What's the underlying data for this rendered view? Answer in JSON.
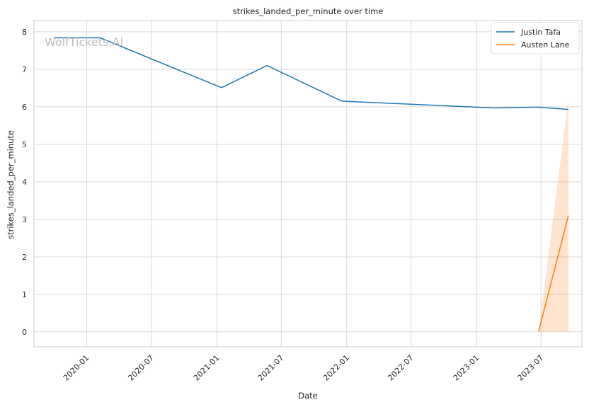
{
  "watermark": "WolfTickets.AI",
  "chart_data": {
    "type": "line",
    "title": "strikes_landed_per_minute over time",
    "xlabel": "Date",
    "ylabel": "strikes_landed_per_minute",
    "x_ticks": [
      "2020-01",
      "2020-07",
      "2021-01",
      "2021-07",
      "2022-01",
      "2022-07",
      "2023-01",
      "2023-07"
    ],
    "y_ticks": [
      "0",
      "1",
      "2",
      "3",
      "4",
      "5",
      "6",
      "7",
      "8"
    ],
    "ylim": [
      -0.4,
      8.3
    ],
    "xlim": [
      "2019-08-06",
      "2023-10-24"
    ],
    "grid": true,
    "legend_position": "top-right",
    "series": [
      {
        "name": "Justin Tafa",
        "color": "#1f77b4",
        "points": [
          {
            "x": "2019-10-01",
            "y": 7.84
          },
          {
            "x": "2020-02-08",
            "y": 7.84
          },
          {
            "x": "2021-01-14",
            "y": 6.51
          },
          {
            "x": "2021-05-22",
            "y": 7.1
          },
          {
            "x": "2021-12-18",
            "y": 6.15
          },
          {
            "x": "2023-02-18",
            "y": 5.97
          },
          {
            "x": "2023-06-24",
            "y": 5.99
          },
          {
            "x": "2023-09-16",
            "y": 5.93
          }
        ]
      },
      {
        "name": "Austen Lane",
        "color": "#ff7f0e",
        "points": [
          {
            "x": "2023-06-24",
            "y": 0
          },
          {
            "x": "2023-09-16",
            "y": 3.1
          }
        ],
        "band": [
          {
            "x": "2023-06-24",
            "low": 0,
            "high": 0
          },
          {
            "x": "2023-09-16",
            "low": 0,
            "high": 6.2
          }
        ]
      }
    ]
  }
}
